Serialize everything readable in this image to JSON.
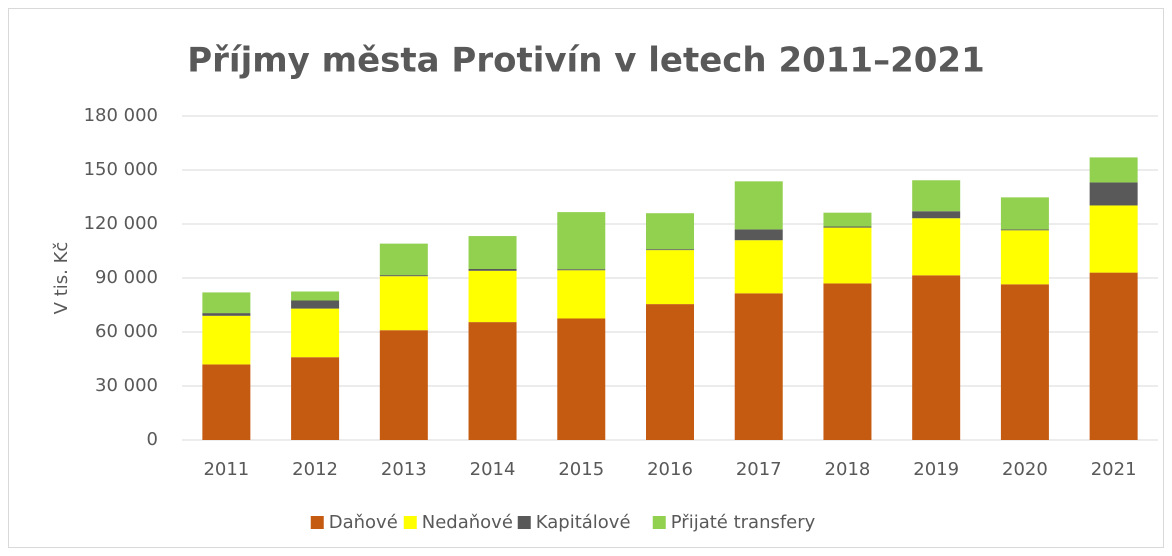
{
  "chart_data": {
    "type": "stacked_bar",
    "title": "Příjmy města Protivín v letech 2011–2021",
    "y_label": "V tis. Kč",
    "categories": [
      "2011",
      "2012",
      "2013",
      "2014",
      "2015",
      "2016",
      "2017",
      "2018",
      "2019",
      "2020",
      "2021"
    ],
    "series": [
      {
        "name": "Daňové",
        "color": "#c55a11",
        "values": [
          42000,
          46000,
          61000,
          65500,
          67500,
          75500,
          81500,
          87000,
          91500,
          86500,
          93000
        ]
      },
      {
        "name": "Nedaňové",
        "color": "#ffff00",
        "values": [
          27000,
          27000,
          30000,
          28500,
          26800,
          30000,
          29500,
          31000,
          31700,
          30000,
          37300
        ]
      },
      {
        "name": "Kapitálové",
        "color": "#595959",
        "values": [
          1500,
          4500,
          600,
          1000,
          600,
          500,
          6000,
          600,
          3900,
          500,
          12800
        ]
      },
      {
        "name": "Přijaté transfery",
        "color": "#92d050",
        "values": [
          11500,
          5000,
          17500,
          18300,
          31700,
          20000,
          26700,
          7700,
          17200,
          17800,
          13900
        ]
      }
    ],
    "ylim": [
      0,
      180000
    ],
    "yticks": [
      0,
      {
        "value": 30000,
        "label": "30 000"
      },
      {
        "value": 60000,
        "label": "60 000"
      },
      {
        "value": 90000,
        "label": "90 000"
      },
      {
        "value": 120000,
        "label": "120 000"
      },
      {
        "value": 150000,
        "label": "150 000"
      },
      {
        "value": 180000,
        "label": "180 000"
      }
    ],
    "grid": true,
    "legend": "bottom"
  }
}
